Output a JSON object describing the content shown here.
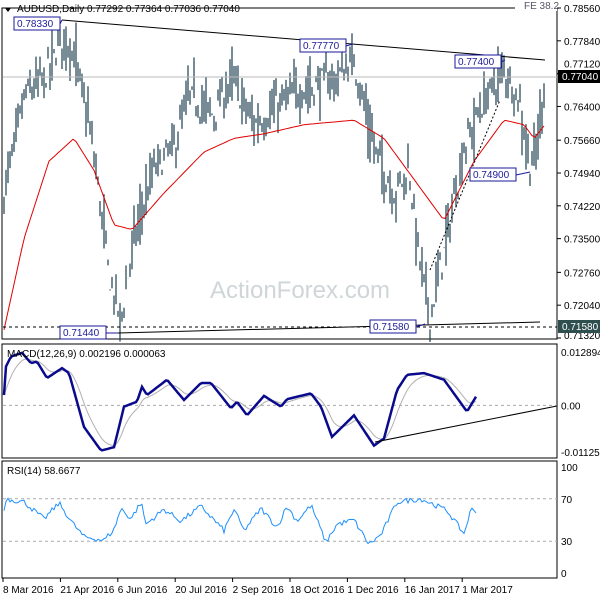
{
  "header": {
    "symbol_line": "AUDUSD,Daily  0.77292 0.77364 0.77036 0.77040",
    "fe_label": "FE 38.2"
  },
  "watermark": "ActionForex.com",
  "colors": {
    "bars": "#1d3e50",
    "ma": "#e00000",
    "macd": "#0a0a8c",
    "signal": "#b0b0b0",
    "rsi": "#1e90ff",
    "annot": "#1a1a9a"
  },
  "chart_data": [
    {
      "type": "line",
      "title": "AUDUSD Daily price (OHLC bars with moving average)",
      "ylim": [
        0.7132,
        0.7856
      ],
      "yticks": [
        "0.78560",
        "0.77840",
        "0.77120",
        "0.76400",
        "0.75660",
        "0.74940",
        "0.74220",
        "0.73500",
        "0.72760",
        "0.72040",
        "0.71320"
      ],
      "current_price": "0.77040",
      "support_label": "0.71580",
      "close_waypoints": [
        [
          0,
          0.745
        ],
        [
          10,
          0.755
        ],
        [
          20,
          0.766
        ],
        [
          40,
          0.77
        ],
        [
          60,
          0.78
        ],
        [
          70,
          0.775
        ],
        [
          85,
          0.76
        ],
        [
          95,
          0.745
        ],
        [
          105,
          0.727
        ],
        [
          117,
          0.717
        ],
        [
          130,
          0.735
        ],
        [
          150,
          0.75
        ],
        [
          170,
          0.755
        ],
        [
          185,
          0.766
        ],
        [
          210,
          0.762
        ],
        [
          228,
          0.77
        ],
        [
          250,
          0.76
        ],
        [
          280,
          0.765
        ],
        [
          300,
          0.768
        ],
        [
          330,
          0.77
        ],
        [
          350,
          0.774
        ],
        [
          370,
          0.755
        ],
        [
          390,
          0.745
        ],
        [
          405,
          0.75
        ],
        [
          415,
          0.731
        ],
        [
          426,
          0.718
        ],
        [
          440,
          0.732
        ],
        [
          460,
          0.755
        ],
        [
          480,
          0.765
        ],
        [
          500,
          0.772
        ],
        [
          515,
          0.766
        ],
        [
          525,
          0.752
        ],
        [
          531,
          0.752
        ],
        [
          541,
          0.771
        ]
      ],
      "ma_waypoints": [
        [
          0,
          0.715
        ],
        [
          20,
          0.735
        ],
        [
          45,
          0.752
        ],
        [
          70,
          0.757
        ],
        [
          90,
          0.75
        ],
        [
          110,
          0.738
        ],
        [
          128,
          0.737
        ],
        [
          160,
          0.745
        ],
        [
          200,
          0.754
        ],
        [
          230,
          0.757
        ],
        [
          260,
          0.758
        ],
        [
          300,
          0.76
        ],
        [
          350,
          0.761
        ],
        [
          380,
          0.757
        ],
        [
          410,
          0.748
        ],
        [
          440,
          0.739
        ],
        [
          470,
          0.752
        ],
        [
          500,
          0.761
        ],
        [
          520,
          0.76
        ],
        [
          530,
          0.757
        ],
        [
          541,
          0.76
        ]
      ],
      "annotations": [
        "0.78330",
        "0.77770",
        "0.77400",
        "0.74900",
        "0.71440",
        "0.71580"
      ]
    },
    {
      "type": "line",
      "title": "MACD(12,26,9) 0.002196 0.000063",
      "ylim": [
        -0.011253,
        0.012894
      ],
      "yticks": [
        "0.012894",
        "0.00",
        "-0.011253"
      ],
      "macd_waypoints": [
        [
          2,
          0.0094
        ],
        [
          7,
          0.0118
        ],
        [
          18,
          0.0127
        ],
        [
          27,
          0.0102
        ],
        [
          33,
          0.0106
        ],
        [
          43,
          0.0066
        ],
        [
          58,
          0.009
        ],
        [
          65,
          0.0078
        ],
        [
          80,
          -0.0052
        ],
        [
          97,
          -0.0109
        ],
        [
          110,
          -0.0101
        ],
        [
          120,
          -0.0003
        ],
        [
          133,
          0.0009
        ],
        [
          138,
          0.0045
        ],
        [
          143,
          0.0025
        ],
        [
          163,
          0.0062
        ],
        [
          180,
          0.0013
        ],
        [
          197,
          0.0054
        ],
        [
          207,
          0.0054
        ],
        [
          227,
          -0.0007
        ],
        [
          233,
          0.0009
        ],
        [
          243,
          -0.0024
        ],
        [
          260,
          0.0023
        ],
        [
          277,
          -0.0003
        ],
        [
          283,
          0.0015
        ],
        [
          307,
          0.0029
        ],
        [
          317,
          -0.0003
        ],
        [
          328,
          -0.0076
        ],
        [
          350,
          -0.0024
        ],
        [
          370,
          -0.0097
        ],
        [
          380,
          -0.008
        ],
        [
          393,
          0.0037
        ],
        [
          403,
          0.0074
        ],
        [
          420,
          0.0078
        ],
        [
          440,
          0.0062
        ],
        [
          463,
          -0.0015
        ],
        [
          473,
          0.0025
        ]
      ]
    },
    {
      "type": "line",
      "title": "RSI(14) 58.6677",
      "ylim": [
        0,
        100
      ],
      "yticks": [
        "100",
        "70",
        "30",
        "0"
      ],
      "rsi_waypoints": [
        [
          2,
          70
        ],
        [
          20,
          67
        ],
        [
          40,
          51
        ],
        [
          55,
          66
        ],
        [
          67,
          49
        ],
        [
          80,
          34
        ],
        [
          100,
          31
        ],
        [
          110,
          41
        ],
        [
          117,
          61
        ],
        [
          127,
          51
        ],
        [
          137,
          67
        ],
        [
          142,
          46
        ],
        [
          160,
          60
        ],
        [
          177,
          49
        ],
        [
          197,
          63
        ],
        [
          220,
          40
        ],
        [
          230,
          60
        ],
        [
          240,
          40
        ],
        [
          257,
          61
        ],
        [
          273,
          43
        ],
        [
          283,
          63
        ],
        [
          293,
          49
        ],
        [
          307,
          64
        ],
        [
          322,
          29
        ],
        [
          333,
          46
        ],
        [
          350,
          50
        ],
        [
          365,
          27
        ],
        [
          377,
          36
        ],
        [
          393,
          67
        ],
        [
          417,
          70
        ],
        [
          443,
          59
        ],
        [
          460,
          37
        ],
        [
          467,
          60
        ],
        [
          472,
          59
        ]
      ]
    }
  ],
  "xaxis": {
    "labels": [
      "8 Mar 2016",
      "21 Apr 2016",
      "6 Jun 2016",
      "20 Jul 2016",
      "2 Sep 2016",
      "18 Oct 2016",
      "1 Dec 2016",
      "16 Jan 2017",
      "1 Mar 2017"
    ]
  }
}
